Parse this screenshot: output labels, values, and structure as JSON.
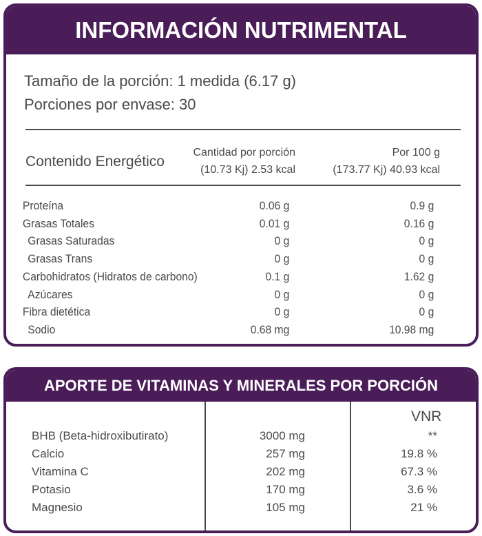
{
  "nutrition": {
    "title": "INFORMACIÓN  NUTRIMENTAL",
    "serving_size": "Tamaño de la porción: 1 medida (6.17 g)",
    "servings_per_container": "Porciones por envase: 30",
    "energy_label": "Contenido Energético",
    "col_portion": [
      "Cantidad por porción",
      "(10.73 Kj) 2.53 kcal"
    ],
    "col_100g": [
      "Por 100 g",
      "(173.77 Kj) 40.93 kcal"
    ],
    "rows": [
      {
        "name": "Proteína",
        "portion": "0.06 g",
        "per100": "0.9 g",
        "indent": false
      },
      {
        "name": "Grasas Totales",
        "portion": "0.01 g",
        "per100": "0.16 g",
        "indent": false
      },
      {
        "name": "Grasas Saturadas",
        "portion": "0 g",
        "per100": "0 g",
        "indent": true
      },
      {
        "name": "Grasas Trans",
        "portion": "0 g",
        "per100": "0 g",
        "indent": true
      },
      {
        "name": "Carbohidratos (Hidratos de carbono)",
        "portion": "0.1 g",
        "per100": "1.62 g",
        "indent": false
      },
      {
        "name": "Azúcares",
        "portion": "0 g",
        "per100": "0 g",
        "indent": true
      },
      {
        "name": "Fibra dietética",
        "portion": "0 g",
        "per100": "0 g",
        "indent": false
      },
      {
        "name": "Sodio",
        "portion": "0.68 mg",
        "per100": "10.98 mg",
        "indent": true
      }
    ]
  },
  "vitamins": {
    "title": "APORTE DE VITAMINAS Y MINERALES POR PORCIÓN",
    "vnr_header": "VNR",
    "rows": [
      {
        "name": "BHB (Beta-hidroxibutirato)",
        "amount": "3000 mg",
        "vnr": "**"
      },
      {
        "name": "Calcio",
        "amount": "257 mg",
        "vnr": "19.8 %"
      },
      {
        "name": "Vitamina C",
        "amount": "202 mg",
        "vnr": "67.3 %"
      },
      {
        "name": "Potasio",
        "amount": "170 mg",
        "vnr": "3.6 %"
      },
      {
        "name": "Magnesio",
        "amount": "105 mg",
        "vnr": "21 %"
      }
    ]
  },
  "colors": {
    "brand_purple": "#4a1c58",
    "text": "#4a4a4a"
  }
}
